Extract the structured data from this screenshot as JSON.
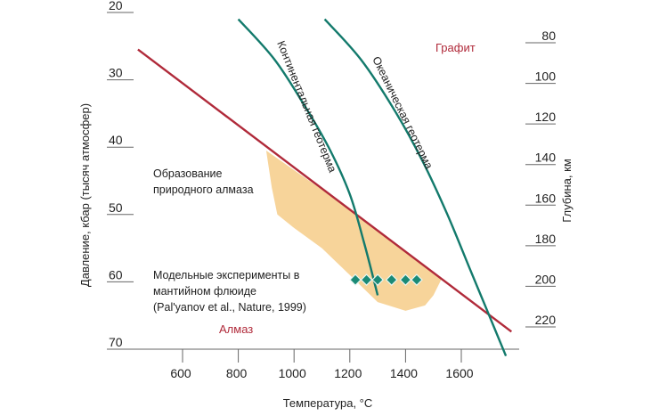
{
  "chart_data": {
    "type": "line",
    "xlabel": "Температура, °С",
    "ylabel": "Давление, кбар (тысяч атмосфер)",
    "y2label": "Глубина, км",
    "x_ticks": [
      600,
      800,
      1000,
      1200,
      1400,
      1600
    ],
    "y_ticks": [
      20,
      30,
      40,
      50,
      60,
      70
    ],
    "y2_ticks": [
      80,
      100,
      120,
      140,
      160,
      180,
      200,
      220
    ],
    "xlim": [
      380,
      1790
    ],
    "ylim": [
      20,
      70
    ],
    "y2lim": [
      72,
      230
    ],
    "series": [
      {
        "name": "",
        "color": "#b02a3a",
        "points": [
          [
            440,
            25.5
          ],
          [
            1780,
            67.4
          ]
        ]
      },
      {
        "name": "Континентальная геотерма",
        "color": "#137a6c",
        "points": [
          [
            800,
            21.0
          ],
          [
            930,
            27.0
          ],
          [
            1040,
            34.0
          ],
          [
            1130,
            40.5
          ],
          [
            1200,
            47.0
          ],
          [
            1250,
            54.0
          ],
          [
            1300,
            62.0
          ]
        ]
      },
      {
        "name": "Океаническая геотерма",
        "color": "#137a6c",
        "points": [
          [
            1110,
            21.0
          ],
          [
            1240,
            27.0
          ],
          [
            1360,
            34.5
          ],
          [
            1460,
            42.0
          ],
          [
            1550,
            50.0
          ],
          [
            1630,
            58.0
          ],
          [
            1690,
            64.0
          ],
          [
            1760,
            71.0
          ]
        ]
      }
    ],
    "region": {
      "label": "Образование природного алмаза",
      "color": "#f7d49a",
      "points": [
        [
          900,
          40.5
        ],
        [
          1210,
          49.5
        ],
        [
          1530,
          59.5
        ],
        [
          1500,
          62.0
        ],
        [
          1470,
          63.5
        ],
        [
          1400,
          64.3
        ],
        [
          1300,
          63.0
        ],
        [
          1200,
          59.0
        ],
        [
          1100,
          55.0
        ],
        [
          1000,
          52.0
        ],
        [
          940,
          50.0
        ],
        [
          920,
          46.0
        ],
        [
          900,
          40.5
        ]
      ]
    },
    "experiments": {
      "label_lines": [
        "Модельные эксперименты в",
        "мантийном флюиде",
        "(Pal'yanov et al., Nature, 1999)"
      ],
      "color": "#1a8a76",
      "points": [
        [
          1220,
          59.7
        ],
        [
          1260,
          59.7
        ],
        [
          1300,
          59.7
        ],
        [
          1350,
          59.7
        ],
        [
          1400,
          59.7
        ],
        [
          1440,
          59.7
        ]
      ]
    },
    "annotations": {
      "graphite": "Графит",
      "diamond": "Алмаз",
      "formation_lines": [
        "Образование",
        "природного алмаза"
      ]
    }
  }
}
